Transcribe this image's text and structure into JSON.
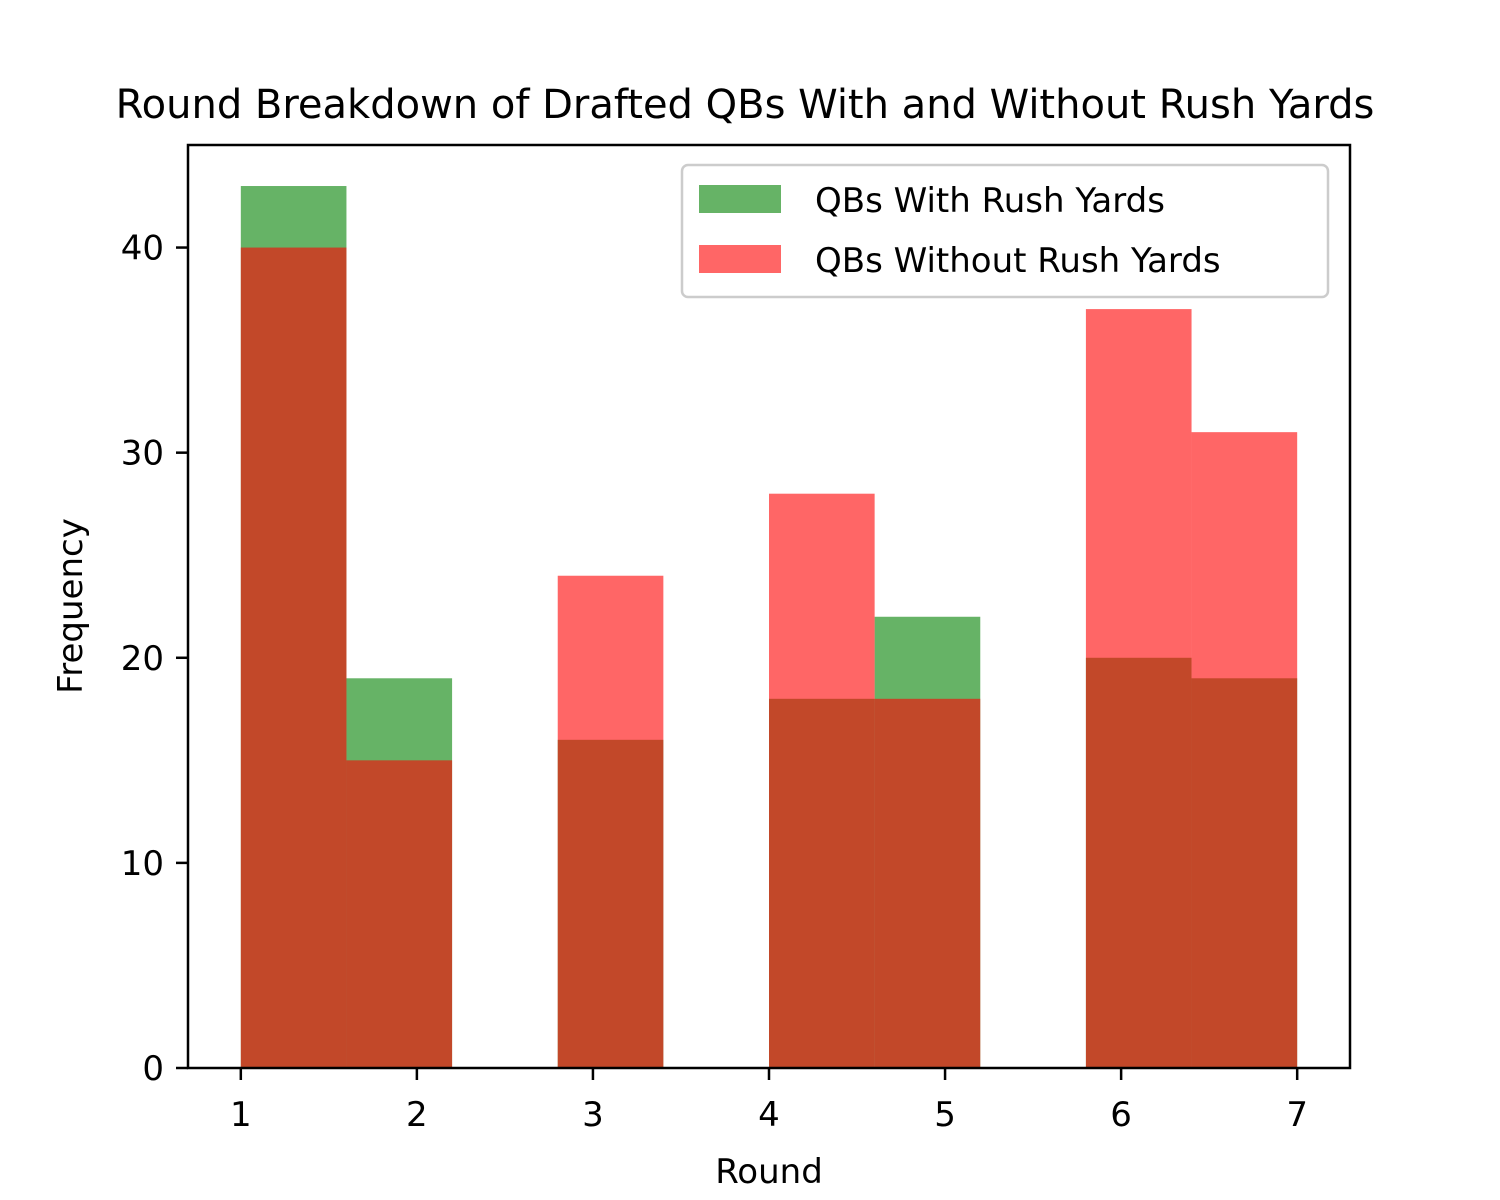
{
  "chart_data": {
    "type": "bar",
    "title": "Round Breakdown of Drafted QBs With and Without Rush Yards",
    "xlabel": "Round",
    "ylabel": "Frequency",
    "xlim": [
      0.7,
      7.3
    ],
    "ylim": [
      0,
      45
    ],
    "xticks": [
      1,
      2,
      3,
      4,
      5,
      6,
      7
    ],
    "yticks": [
      0,
      10,
      20,
      30,
      40
    ],
    "grid": false,
    "legend_position": "top-right",
    "bins": [
      [
        1.0,
        1.6
      ],
      [
        1.6,
        2.2
      ],
      [
        2.2,
        2.8
      ],
      [
        2.8,
        3.4
      ],
      [
        3.4,
        4.0
      ],
      [
        4.0,
        4.6
      ],
      [
        4.6,
        5.2
      ],
      [
        5.2,
        5.8
      ],
      [
        5.8,
        6.4
      ],
      [
        6.4,
        7.0
      ]
    ],
    "series": [
      {
        "name": "QBs With Rush Yards",
        "color": "#008000",
        "opacity": 0.6,
        "values": [
          43,
          19,
          0,
          16,
          0,
          18,
          22,
          0,
          20,
          19
        ]
      },
      {
        "name": "QBs Without Rush Yards",
        "color": "#ff0000",
        "opacity": 0.6,
        "values": [
          40,
          15,
          0,
          24,
          0,
          28,
          18,
          0,
          37,
          31
        ]
      }
    ]
  }
}
